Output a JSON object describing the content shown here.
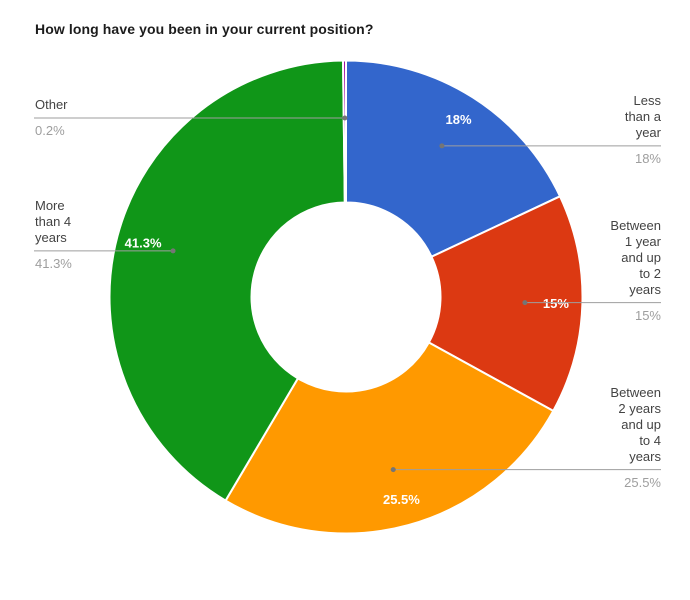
{
  "title": "How long have you been in your current position?",
  "chart_data": {
    "type": "pie",
    "donut": true,
    "pie_hole": 0.4,
    "start_angle_deg": 0,
    "direction": "clockwise",
    "title": "How long have you been in your current position?",
    "categories": [
      "Less than a year",
      "Between 1 year and up to 2 years",
      "Between 2 years and up to 4 years",
      "More than 4 years",
      "Other"
    ],
    "values": [
      18,
      15,
      25.5,
      41.3,
      0.2
    ],
    "colors": [
      "#3366cc",
      "#dc3912",
      "#ff9900",
      "#109618",
      "#990099"
    ],
    "slice_labels": [
      "18%",
      "15%",
      "25.5%",
      "41.3%",
      "0.2%"
    ],
    "slice_label_color": "#ffffff",
    "legend_position": "labeled",
    "label_text_color": "#434343",
    "label_value_color": "#9e9e9e",
    "leader_line_color": "#9e9e9e"
  },
  "labels": [
    {
      "text": "Less\nthan a\nyear",
      "pct": "18%"
    },
    {
      "text": "Between\n1 year\nand up\nto 2\nyears",
      "pct": "15%"
    },
    {
      "text": "Between\n2 years\nand up\nto 4\nyears",
      "pct": "25.5%"
    },
    {
      "text": "More\nthan 4\nyears",
      "pct": "41.3%"
    },
    {
      "text": "Other",
      "pct": "0.2%"
    }
  ]
}
